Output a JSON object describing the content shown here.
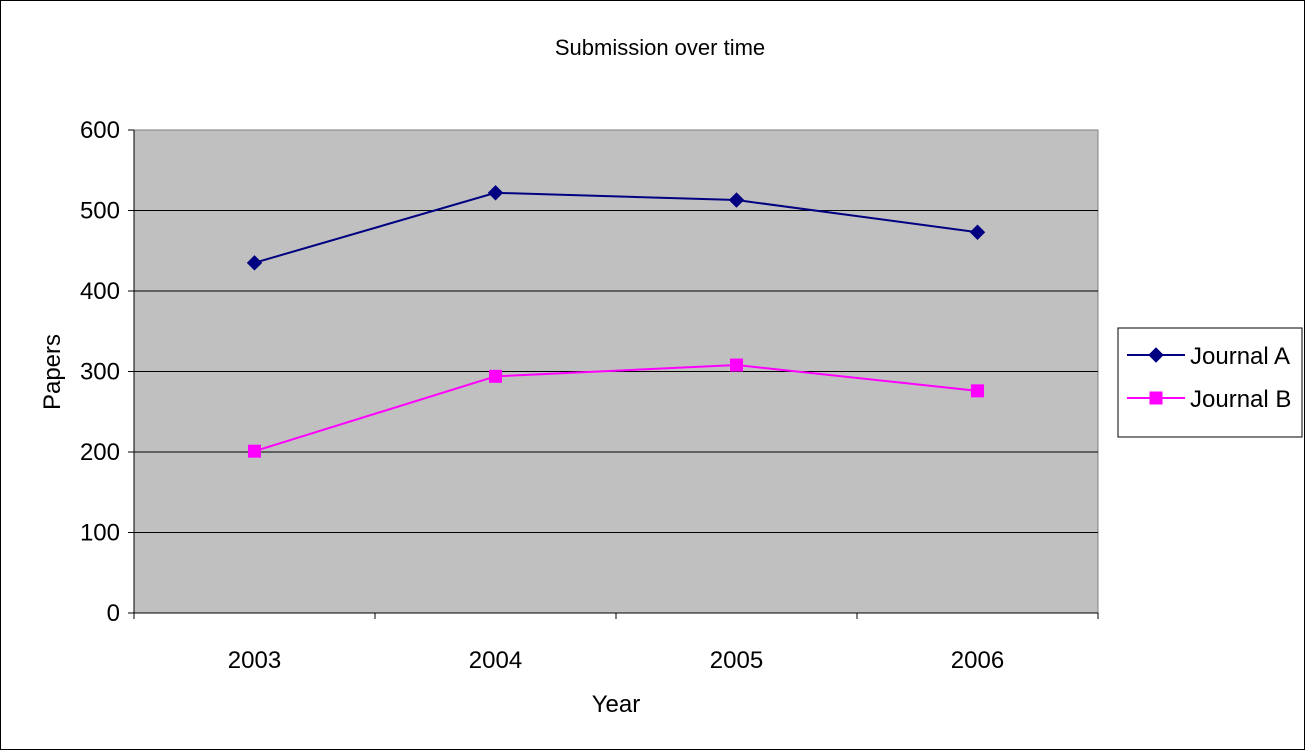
{
  "chart_data": {
    "type": "line",
    "title": "Submission over time",
    "xlabel": "Year",
    "ylabel": "Papers",
    "categories": [
      "2003",
      "2004",
      "2005",
      "2006"
    ],
    "ylim": [
      0,
      600
    ],
    "yticks": [
      "0",
      "100",
      "200",
      "300",
      "400",
      "500",
      "600"
    ],
    "grid": true,
    "legend_position": "right",
    "plot_background": "#c0c0c0",
    "series": [
      {
        "name": "Journal A",
        "color": "#000080",
        "marker": "diamond",
        "values": [
          435,
          522,
          513,
          473
        ]
      },
      {
        "name": "Journal B",
        "color": "#ff00ff",
        "marker": "square",
        "values": [
          201,
          294,
          308,
          276
        ]
      }
    ]
  }
}
